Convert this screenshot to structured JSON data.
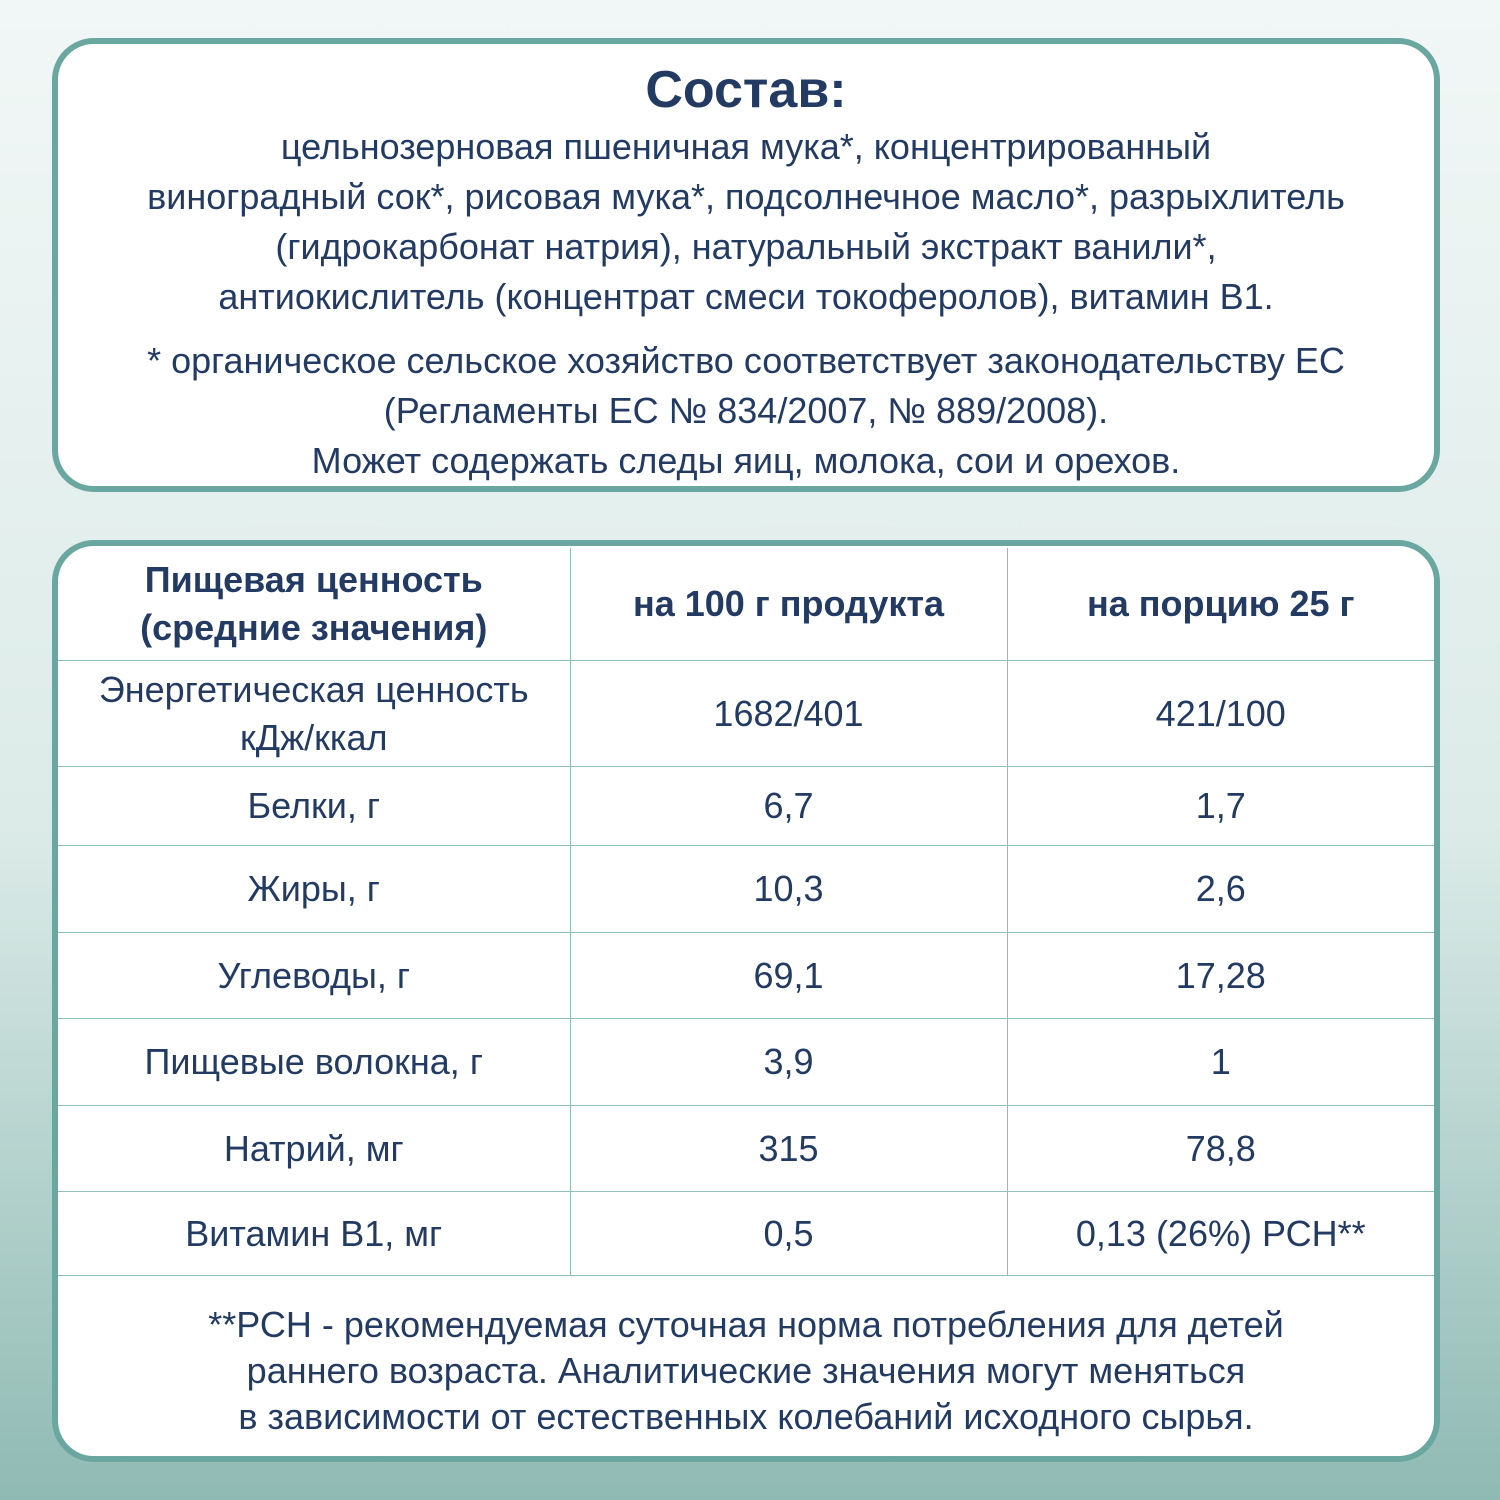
{
  "composition": {
    "title": "Состав:",
    "lines": [
      "цельнозерновая пшеничная мука*, концентрированный",
      "виноградный сок*, рисовая мука*, подсолнечное масло*, разрыхлитель",
      "(гидрокарбонат натрия), натуральный экстракт ванили*,",
      "антиокислитель (концентрат смеси токоферолов), витамин В1."
    ],
    "footnote": [
      "* органическое сельское хозяйство соответствует законодательству ЕС",
      "(Регламенты ЕС № 834/2007, № 889/2008).",
      "Может содержать следы яиц, молока, сои и орехов."
    ]
  },
  "nutrition": {
    "header": [
      [
        "Пищевая ценность",
        "(средние значения)"
      ],
      [
        "на 100 г продукта"
      ],
      [
        "на порцию 25 г"
      ]
    ],
    "rows": [
      [
        [
          "Энергетическая ценность",
          "кДж/ккал"
        ],
        "1682/401",
        "421/100"
      ],
      [
        [
          "Белки, г"
        ],
        "6,7",
        "1,7"
      ],
      [
        [
          "Жиры, г"
        ],
        "10,3",
        "2,6"
      ],
      [
        [
          "Углеводы, г"
        ],
        "69,1",
        "17,28"
      ],
      [
        [
          "Пищевые волокна, г"
        ],
        "3,9",
        "1"
      ],
      [
        [
          "Натрий, мг"
        ],
        "315",
        "78,8"
      ],
      [
        [
          "Витамин В1, мг"
        ],
        "0,5",
        "0,13 (26%) РСН**"
      ]
    ],
    "footnote": [
      "**РСН - рекомендуемая суточная норма потребления для детей",
      "раннего возраста. Аналитические значения могут меняться",
      "в зависимости от естественных колебаний исходного сырья."
    ]
  }
}
